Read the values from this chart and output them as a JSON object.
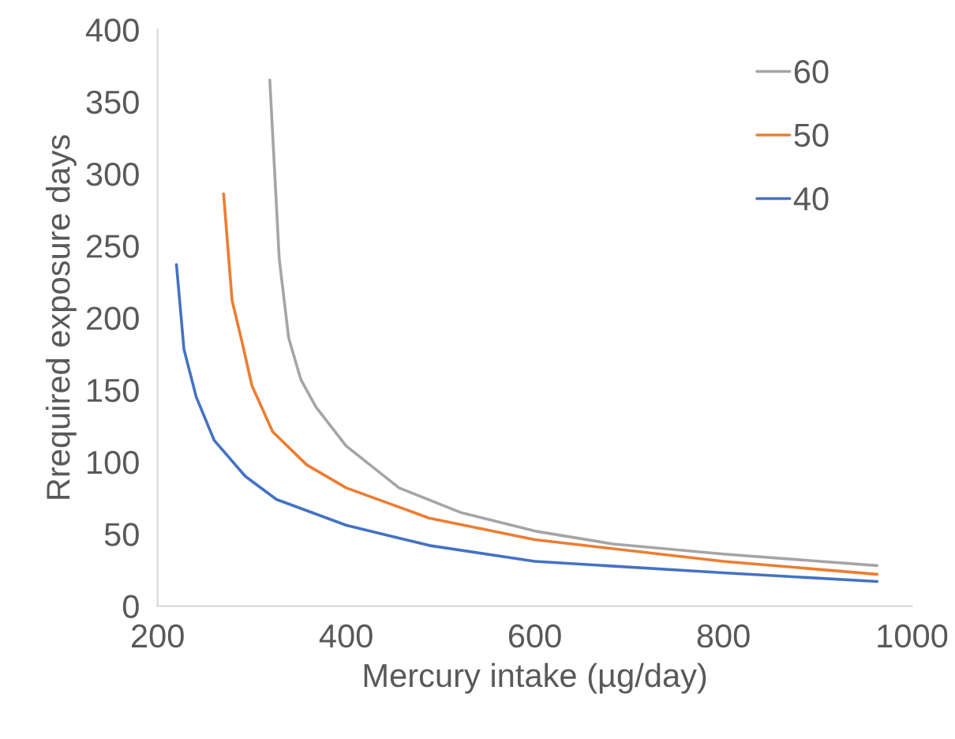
{
  "chart_data": {
    "type": "line",
    "xlabel": "Mercury intake (µg/day)",
    "ylabel": "Rrequired exposure days",
    "xlim": [
      200,
      1000
    ],
    "xticks": [
      200,
      400,
      600,
      800,
      1000
    ],
    "ylim": [
      0,
      400
    ],
    "yticks": [
      0,
      50,
      100,
      150,
      200,
      250,
      300,
      350,
      400
    ],
    "grid": false,
    "legend": "top right",
    "marker": "none",
    "line_style": "solid",
    "series": [
      {
        "name": "60",
        "color": "#a5a5a5",
        "x": [
          319,
          329,
          339,
          352,
          368,
          400,
          456,
          521,
          600,
          683,
          800,
          963
        ],
        "values": [
          365,
          241,
          186,
          157,
          138,
          111,
          82,
          65,
          52,
          43,
          36,
          28
        ]
      },
      {
        "name": "50",
        "color": "#ed7d31",
        "x": [
          270,
          279,
          290,
          300,
          322,
          358,
          400,
          488,
          600,
          800,
          963
        ],
        "values": [
          286,
          212,
          182,
          153,
          121,
          98,
          82,
          61,
          46,
          31,
          22
        ]
      },
      {
        "name": "40",
        "color": "#4472c4",
        "x": [
          220,
          228,
          241,
          260,
          293,
          326,
          400,
          488,
          600,
          800,
          963
        ],
        "values": [
          237,
          178,
          145,
          115,
          90,
          74,
          56,
          42,
          31,
          23,
          17
        ]
      }
    ]
  }
}
